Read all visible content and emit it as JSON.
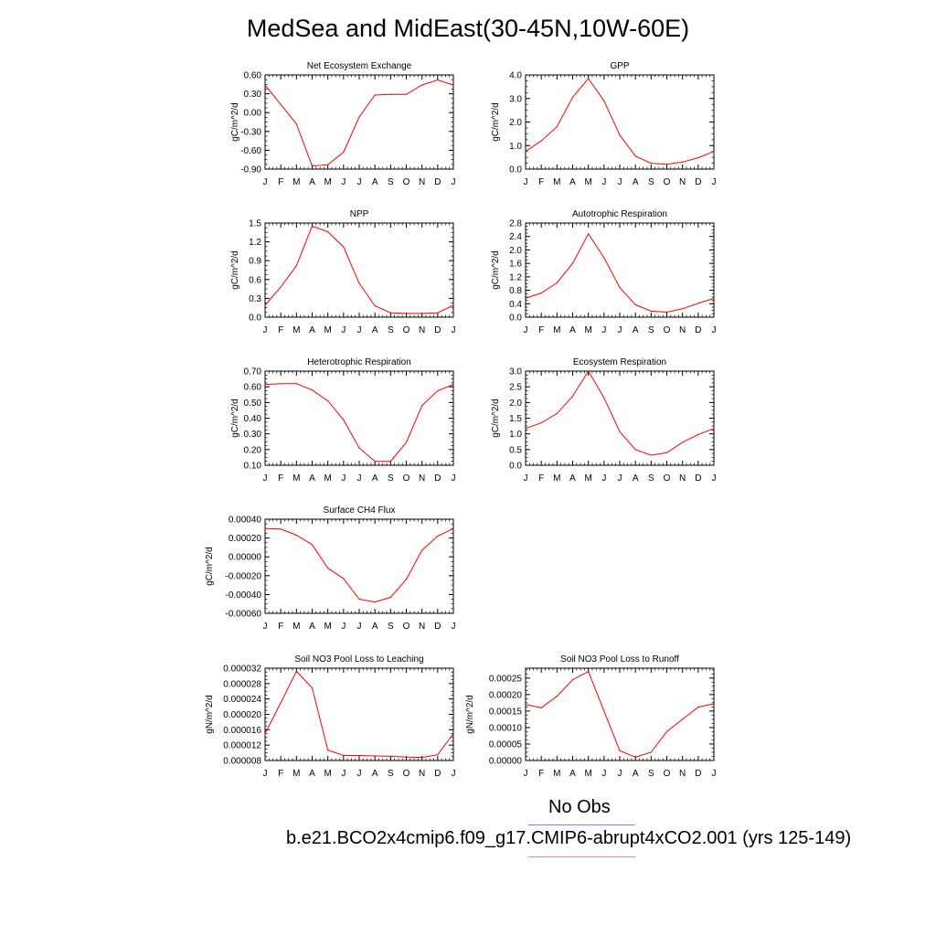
{
  "title": "MedSea and MidEast(30-45N,10W-60E)",
  "legend": {
    "obs_label": "No Obs",
    "obs_color": "#8080ff",
    "case_label": "b.e21.BCO2x4cmip6.f09_g17.CMIP6-abrupt4xCO2.001 (yrs 125-149)",
    "case_color": "#ff8080"
  },
  "line_color": "#ff0000",
  "chart_data": [
    {
      "type": "line",
      "title": "Net Ecosystem Exchange",
      "ylabel": "gC/m^2/d",
      "categories": [
        "J",
        "F",
        "M",
        "A",
        "M",
        "J",
        "J",
        "A",
        "S",
        "O",
        "N",
        "D",
        "J"
      ],
      "ylim": [
        -0.9,
        0.6
      ],
      "yticks": [
        "0.60",
        "0.30",
        "0.00",
        "-0.30",
        "-0.60",
        "-0.90"
      ],
      "series": [
        {
          "values": [
            0.44,
            0.13,
            -0.18,
            -0.85,
            -0.83,
            -0.63,
            -0.07,
            0.28,
            0.29,
            0.29,
            0.44,
            0.52,
            0.44
          ]
        }
      ]
    },
    {
      "type": "line",
      "title": "GPP",
      "ylabel": "gC/m^2/d",
      "categories": [
        "J",
        "F",
        "M",
        "A",
        "M",
        "J",
        "J",
        "A",
        "S",
        "O",
        "N",
        "D",
        "J"
      ],
      "ylim": [
        0.0,
        4.0
      ],
      "yticks": [
        "4.0",
        "3.0",
        "2.0",
        "1.0",
        "0.0"
      ],
      "series": [
        {
          "values": [
            0.75,
            1.2,
            1.8,
            3.05,
            3.85,
            2.9,
            1.45,
            0.55,
            0.25,
            0.2,
            0.3,
            0.48,
            0.75
          ]
        }
      ]
    },
    {
      "type": "line",
      "title": "NPP",
      "ylabel": "gC/m^2/d",
      "categories": [
        "J",
        "F",
        "M",
        "A",
        "M",
        "J",
        "J",
        "A",
        "S",
        "O",
        "N",
        "D",
        "J"
      ],
      "ylim": [
        0.0,
        1.5
      ],
      "yticks": [
        "1.5",
        "1.2",
        "0.9",
        "0.6",
        "0.3",
        "0.0"
      ],
      "series": [
        {
          "values": [
            0.19,
            0.48,
            0.82,
            1.45,
            1.36,
            1.12,
            0.54,
            0.18,
            0.07,
            0.06,
            0.06,
            0.07,
            0.19
          ]
        }
      ]
    },
    {
      "type": "line",
      "title": "Autotrophic Respiration",
      "ylabel": "gC/m^2/d",
      "categories": [
        "J",
        "F",
        "M",
        "A",
        "M",
        "J",
        "J",
        "A",
        "S",
        "O",
        "N",
        "D",
        "J"
      ],
      "ylim": [
        0.0,
        2.8
      ],
      "yticks": [
        "2.8",
        "2.4",
        "2.0",
        "1.6",
        "1.2",
        "0.8",
        "0.4",
        "0.0"
      ],
      "series": [
        {
          "values": [
            0.56,
            0.72,
            1.02,
            1.6,
            2.48,
            1.77,
            0.88,
            0.37,
            0.18,
            0.15,
            0.25,
            0.41,
            0.56
          ]
        }
      ]
    },
    {
      "type": "line",
      "title": "Heterotrophic Respiration",
      "ylabel": "gC/m^2/d",
      "categories": [
        "J",
        "F",
        "M",
        "A",
        "M",
        "J",
        "J",
        "A",
        "S",
        "O",
        "N",
        "D",
        "J"
      ],
      "ylim": [
        0.1,
        0.7
      ],
      "yticks": [
        "0.70",
        "0.60",
        "0.50",
        "0.40",
        "0.30",
        "0.20",
        "0.10"
      ],
      "series": [
        {
          "values": [
            0.615,
            0.62,
            0.62,
            0.58,
            0.51,
            0.39,
            0.21,
            0.125,
            0.125,
            0.245,
            0.48,
            0.575,
            0.615
          ]
        }
      ]
    },
    {
      "type": "line",
      "title": "Ecosystem Respiration",
      "ylabel": "gC/m^2/d",
      "categories": [
        "J",
        "F",
        "M",
        "A",
        "M",
        "J",
        "J",
        "A",
        "S",
        "O",
        "N",
        "D",
        "J"
      ],
      "ylim": [
        0.0,
        3.0
      ],
      "yticks": [
        "3.0",
        "2.5",
        "2.0",
        "1.5",
        "1.0",
        "0.5",
        "0.0"
      ],
      "series": [
        {
          "values": [
            1.17,
            1.35,
            1.65,
            2.2,
            3.0,
            2.15,
            1.07,
            0.5,
            0.32,
            0.4,
            0.73,
            0.98,
            1.17
          ]
        }
      ]
    },
    {
      "type": "line",
      "title": "Surface CH4 Flux",
      "ylabel": "gC/m^2/d",
      "categories": [
        "J",
        "F",
        "M",
        "A",
        "M",
        "J",
        "J",
        "A",
        "S",
        "O",
        "N",
        "D",
        "J"
      ],
      "ylim": [
        -0.0006,
        0.0004
      ],
      "yticks": [
        "0.00040",
        "0.00020",
        "0.00000",
        "-0.00020",
        "-0.00040",
        "-0.00060"
      ],
      "series": [
        {
          "values": [
            0.0003,
            0.000295,
            0.00023,
            0.00013,
            -0.00012,
            -0.00023,
            -0.00045,
            -0.00048,
            -0.00043,
            -0.00024,
            7e-05,
            0.00022,
            0.0003
          ]
        }
      ]
    },
    {
      "type": "line",
      "title": "Soil NO3 Pool Loss to Leaching",
      "ylabel": "gN/m^2/d",
      "categories": [
        "J",
        "F",
        "M",
        "A",
        "M",
        "J",
        "J",
        "A",
        "S",
        "O",
        "N",
        "D",
        "J"
      ],
      "ylim": [
        8e-06,
        3.2e-05
      ],
      "yticks": [
        "0.000032",
        "0.000028",
        "0.000024",
        "0.000020",
        "0.000016",
        "0.000012",
        "0.000008"
      ],
      "series": [
        {
          "values": [
            1.5e-05,
            2.3e-05,
            3.12e-05,
            2.69e-05,
            1.07e-05,
            9.3e-06,
            9.3e-06,
            9.2e-06,
            9.1e-06,
            8.9e-06,
            8.8e-06,
            9.5e-06,
            1.5e-05
          ]
        }
      ]
    },
    {
      "type": "line",
      "title": "Soil NO3 Pool Loss to Runoff",
      "ylabel": "gN/m^2/d",
      "categories": [
        "J",
        "F",
        "M",
        "A",
        "M",
        "J",
        "J",
        "A",
        "S",
        "O",
        "N",
        "D",
        "J"
      ],
      "ylim": [
        0.0,
        0.00028
      ],
      "yticks": [
        "0.00025",
        "0.00020",
        "0.00015",
        "0.00010",
        "0.00005",
        "0.00000"
      ],
      "series": [
        {
          "values": [
            0.00017,
            0.00016,
            0.000195,
            0.000245,
            0.00027,
            0.00015,
            3e-05,
            1e-05,
            2.5e-05,
            8.8e-05,
            0.000125,
            0.000162,
            0.000172
          ]
        }
      ]
    }
  ]
}
